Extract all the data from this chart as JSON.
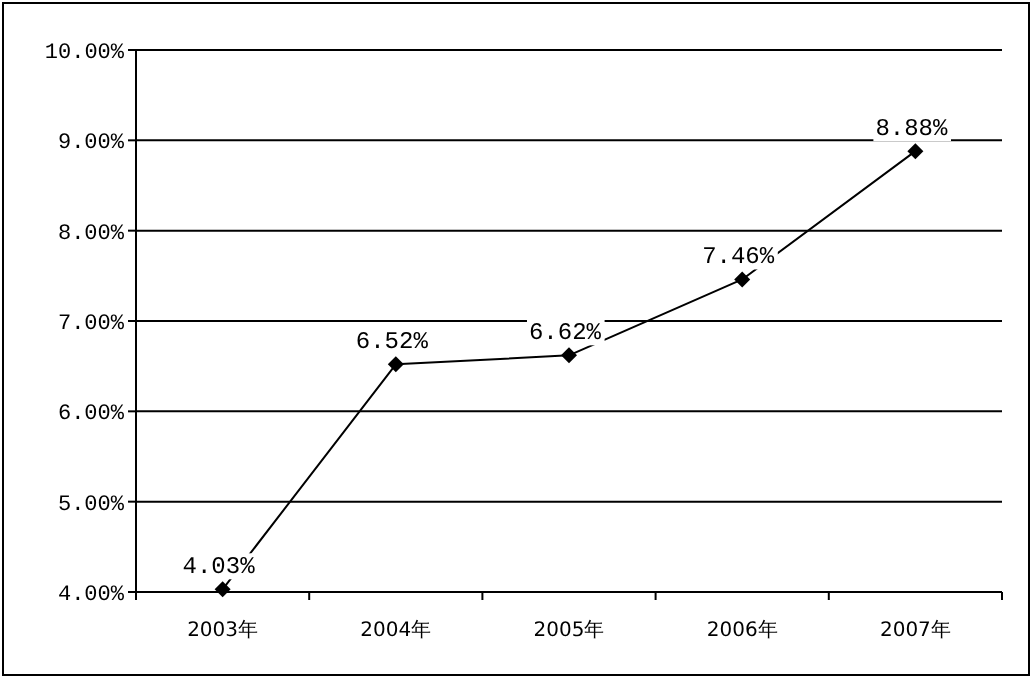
{
  "chart_data": {
    "type": "line",
    "categories": [
      "2003年",
      "2004年",
      "2005年",
      "2006年",
      "2007年"
    ],
    "values": [
      4.03,
      6.52,
      6.62,
      7.46,
      8.88
    ],
    "value_labels": [
      "4.03%",
      "6.52%",
      "6.62%",
      "7.46%",
      "8.88%"
    ],
    "color": "#000000",
    "marker": "diamond",
    "line_style": "solid",
    "grid": "y",
    "ylim": [
      4,
      10
    ],
    "yticks": [
      {
        "value": 4,
        "label": "4.00%"
      },
      {
        "value": 5,
        "label": "5.00%"
      },
      {
        "value": 6,
        "label": "6.00%"
      },
      {
        "value": 7,
        "label": "7.00%"
      },
      {
        "value": 8,
        "label": "8.00%"
      },
      {
        "value": 9,
        "label": "9.00%"
      },
      {
        "value": 10,
        "label": "10.00%"
      }
    ]
  }
}
